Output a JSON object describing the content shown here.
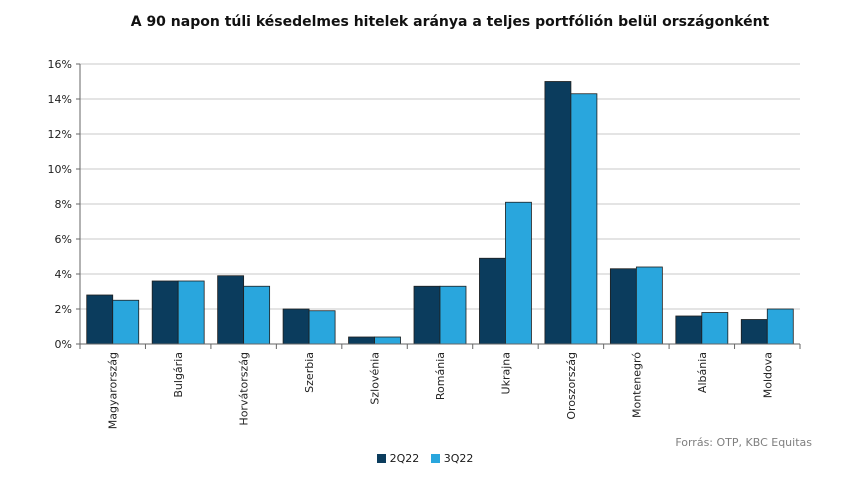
{
  "chart_data": {
    "type": "bar",
    "title": "A 90 napon túli késedelmes hitelek aránya a teljes portfólión belül országonként",
    "categories": [
      "Magyarország",
      "Bulgária",
      "Horvátország",
      "Szerbia",
      "Szlovénia",
      "Románia",
      "Ukrajna",
      "Oroszország",
      "Montenegró",
      "Albánia",
      "Moldova"
    ],
    "series": [
      {
        "name": "2Q22",
        "color": "#0b3c5d",
        "values": [
          2.8,
          3.6,
          3.9,
          2.0,
          0.4,
          3.3,
          4.9,
          15.0,
          4.3,
          1.6,
          1.4
        ]
      },
      {
        "name": "3Q22",
        "color": "#29a6dd",
        "values": [
          2.5,
          3.6,
          3.3,
          1.9,
          0.4,
          3.3,
          8.1,
          14.3,
          4.4,
          1.8,
          2.0
        ]
      }
    ],
    "ylim": [
      0,
      16
    ],
    "yticks": [
      0,
      2,
      4,
      6,
      8,
      10,
      12,
      14,
      16
    ],
    "ytick_labels": [
      "0%",
      "2%",
      "4%",
      "6%",
      "8%",
      "10%",
      "12%",
      "14%",
      "16%"
    ],
    "grid": true,
    "legend_position": "bottom",
    "source": "Forrás: OTP, KBC Equitas"
  }
}
